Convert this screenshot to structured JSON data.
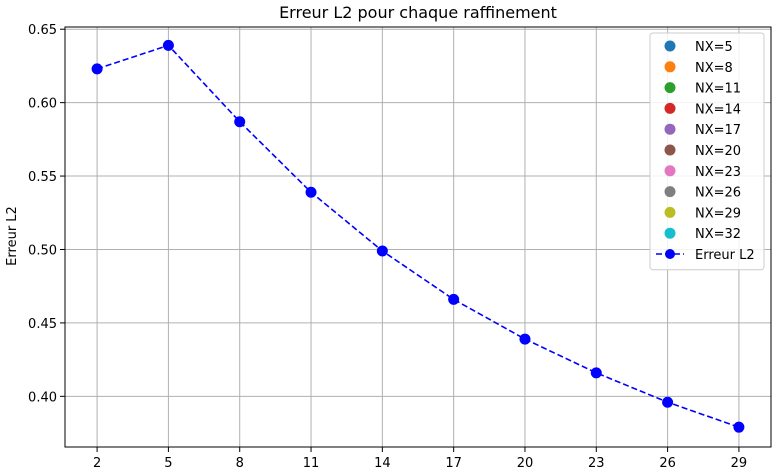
{
  "chart_data": {
    "type": "line",
    "title": "Erreur L2 pour chaque raffinement",
    "xlabel": "",
    "ylabel": "Erreur L2",
    "x": [
      2,
      5,
      8,
      11,
      14,
      17,
      20,
      23,
      26,
      29
    ],
    "xticks": [
      "2",
      "5",
      "8",
      "11",
      "14",
      "17",
      "20",
      "23",
      "26",
      "29"
    ],
    "xlim": [
      0.65,
      30.35
    ],
    "ylim": [
      0.3655,
      0.6515
    ],
    "yticks": [
      "0.40",
      "0.45",
      "0.50",
      "0.55",
      "0.60",
      "0.65"
    ],
    "ytick_values": [
      0.4,
      0.45,
      0.5,
      0.55,
      0.6,
      0.65
    ],
    "grid": true,
    "legend_placement": "top-right",
    "series": [
      {
        "name": "Erreur L2",
        "color": "#0000ff",
        "style": "dashed-with-circle-markers",
        "values": [
          0.623,
          0.639,
          0.587,
          0.539,
          0.499,
          0.466,
          0.439,
          0.416,
          0.396,
          0.379
        ]
      }
    ],
    "legend": [
      {
        "label": "NX=5",
        "color": "#1f77b4",
        "marker": "dot"
      },
      {
        "label": "NX=8",
        "color": "#ff7f0e",
        "marker": "dot"
      },
      {
        "label": "NX=11",
        "color": "#2ca02c",
        "marker": "dot"
      },
      {
        "label": "NX=14",
        "color": "#d62728",
        "marker": "dot"
      },
      {
        "label": "NX=17",
        "color": "#9467bd",
        "marker": "dot"
      },
      {
        "label": "NX=20",
        "color": "#8c564b",
        "marker": "dot"
      },
      {
        "label": "NX=23",
        "color": "#e377c2",
        "marker": "dot"
      },
      {
        "label": "NX=26",
        "color": "#7f7f7f",
        "marker": "dot"
      },
      {
        "label": "NX=29",
        "color": "#bcbd22",
        "marker": "dot"
      },
      {
        "label": "NX=32",
        "color": "#17becf",
        "marker": "dot"
      },
      {
        "label": "Erreur L2",
        "color": "#0000ff",
        "marker": "line-dot"
      }
    ]
  }
}
